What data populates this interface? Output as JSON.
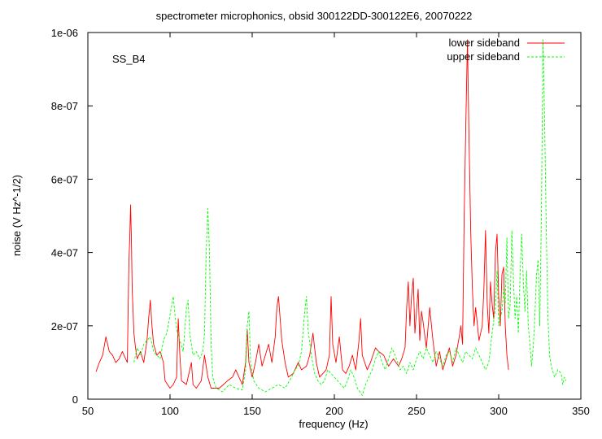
{
  "chart_data": {
    "type": "line",
    "title": "spectrometer microphonics, obsid 300122DD-300122E6, 20070222",
    "xlabel": "frequency (Hz)",
    "ylabel": "noise (V Hz^-1/2)",
    "annotation": "SS_B4",
    "xlim": [
      50,
      350
    ],
    "ylim": [
      0,
      1e-06
    ],
    "xticks": [
      50,
      100,
      150,
      200,
      250,
      300,
      350
    ],
    "xtick_labels": [
      "50",
      "100",
      "150",
      "200",
      "250",
      "300",
      "350"
    ],
    "yticks": [
      0,
      2e-07,
      4e-07,
      6e-07,
      8e-07,
      1e-06
    ],
    "ytick_labels": [
      "0",
      "2e-07",
      "4e-07",
      "6e-07",
      "8e-07",
      "1e-06"
    ],
    "legend_position": "top-right",
    "series": [
      {
        "name": "lower sideband",
        "color": "#ff0000",
        "style": "solid",
        "points": [
          [
            55,
            7.5e-08
          ],
          [
            57,
            1e-07
          ],
          [
            59,
            1.2e-07
          ],
          [
            61,
            1.7e-07
          ],
          [
            63,
            1.3e-07
          ],
          [
            65,
            1.2e-07
          ],
          [
            67,
            1e-07
          ],
          [
            69,
            1.1e-07
          ],
          [
            71,
            1.3e-07
          ],
          [
            73,
            1.1e-07
          ],
          [
            74,
            1e-07
          ],
          [
            75,
            3.8e-07
          ],
          [
            75.5,
            4.4e-07
          ],
          [
            76,
            5.3e-07
          ],
          [
            76.5,
            4.4e-07
          ],
          [
            77,
            3e-07
          ],
          [
            78,
            1.8e-07
          ],
          [
            79,
            1.4e-07
          ],
          [
            80,
            1.1e-07
          ],
          [
            82,
            1.3e-07
          ],
          [
            84,
            1e-07
          ],
          [
            86,
            1.6e-07
          ],
          [
            87,
            2.2e-07
          ],
          [
            88,
            2.7e-07
          ],
          [
            89,
            2e-07
          ],
          [
            90,
            1.5e-07
          ],
          [
            92,
            1.2e-07
          ],
          [
            94,
            1.3e-07
          ],
          [
            96,
            1e-07
          ],
          [
            97,
            5e-08
          ],
          [
            100,
            3e-08
          ],
          [
            102,
            4e-08
          ],
          [
            104,
            6e-08
          ],
          [
            105,
            2.2e-07
          ],
          [
            106,
            1.2e-07
          ],
          [
            107,
            5e-08
          ],
          [
            110,
            4e-08
          ],
          [
            112,
            8e-08
          ],
          [
            113,
            1e-07
          ],
          [
            114,
            4e-08
          ],
          [
            116,
            3e-08
          ],
          [
            119,
            5e-08
          ],
          [
            121,
            1.2e-07
          ],
          [
            123,
            6e-08
          ],
          [
            125,
            3e-08
          ],
          [
            130,
            3e-08
          ],
          [
            135,
            5e-08
          ],
          [
            138,
            6e-08
          ],
          [
            140,
            8e-08
          ],
          [
            142,
            6e-08
          ],
          [
            144,
            4e-08
          ],
          [
            146,
            1e-07
          ],
          [
            147,
            1.9e-07
          ],
          [
            148,
            1e-07
          ],
          [
            150,
            6e-08
          ],
          [
            152,
            1e-07
          ],
          [
            154,
            1.5e-07
          ],
          [
            156,
            9e-08
          ],
          [
            158,
            1.2e-07
          ],
          [
            160,
            1.5e-07
          ],
          [
            162,
            1e-07
          ],
          [
            164,
            1.7e-07
          ],
          [
            165,
            2.5e-07
          ],
          [
            166,
            2.8e-07
          ],
          [
            168,
            1.6e-07
          ],
          [
            170,
            1e-07
          ],
          [
            172,
            6e-08
          ],
          [
            175,
            7e-08
          ],
          [
            178,
            1e-07
          ],
          [
            180,
            8e-08
          ],
          [
            183,
            9e-08
          ],
          [
            185,
            1.2e-07
          ],
          [
            187,
            1.8e-07
          ],
          [
            189,
            1e-07
          ],
          [
            191,
            6e-08
          ],
          [
            193,
            7e-08
          ],
          [
            195,
            8e-08
          ],
          [
            197,
            1.2e-07
          ],
          [
            198,
            2.8e-07
          ],
          [
            199,
            1.5e-07
          ],
          [
            201,
            1e-07
          ],
          [
            203,
            1.7e-07
          ],
          [
            205,
            8e-08
          ],
          [
            207,
            7e-08
          ],
          [
            209,
            9e-08
          ],
          [
            211,
            1.2e-07
          ],
          [
            213,
            8e-08
          ],
          [
            215,
            1.6e-07
          ],
          [
            216,
            2.2e-07
          ],
          [
            217,
            1.2e-07
          ],
          [
            220,
            8e-08
          ],
          [
            222,
            1e-07
          ],
          [
            225,
            1.4e-07
          ],
          [
            227,
            1.3e-07
          ],
          [
            230,
            1.2e-07
          ],
          [
            233,
            9e-08
          ],
          [
            236,
            1.1e-07
          ],
          [
            239,
            9e-08
          ],
          [
            241,
            1.1e-07
          ],
          [
            243,
            1.4e-07
          ],
          [
            244,
            2.5e-07
          ],
          [
            245,
            3.2e-07
          ],
          [
            246,
            2e-07
          ],
          [
            247,
            2.8e-07
          ],
          [
            248,
            3.3e-07
          ],
          [
            249,
            1.8e-07
          ],
          [
            250,
            2.4e-07
          ],
          [
            251,
            3e-07
          ],
          [
            252,
            1.6e-07
          ],
          [
            253,
            2.4e-07
          ],
          [
            254,
            2.1e-07
          ],
          [
            256,
            1.4e-07
          ],
          [
            258,
            2.5e-07
          ],
          [
            260,
            1.6e-07
          ],
          [
            262,
            9e-08
          ],
          [
            264,
            1.3e-07
          ],
          [
            266,
            8e-08
          ],
          [
            268,
            1.1e-07
          ],
          [
            270,
            1.4e-07
          ],
          [
            272,
            9e-08
          ],
          [
            274,
            1.2e-07
          ],
          [
            276,
            1.7e-07
          ],
          [
            277,
            2e-07
          ],
          [
            278,
            1.5e-07
          ],
          [
            279,
            5e-07
          ],
          [
            280,
            7.5e-07
          ],
          [
            281,
            9.8e-07
          ],
          [
            282,
            7e-07
          ],
          [
            283,
            4.5e-07
          ],
          [
            284,
            3e-07
          ],
          [
            285,
            2e-07
          ],
          [
            286,
            2.5e-07
          ],
          [
            288,
            1.6e-07
          ],
          [
            290,
            2e-07
          ],
          [
            291,
            3e-07
          ],
          [
            292,
            4.6e-07
          ],
          [
            293,
            2.6e-07
          ],
          [
            294,
            1.8e-07
          ],
          [
            295,
            3.2e-07
          ],
          [
            296,
            2.6e-07
          ],
          [
            297,
            2.2e-07
          ],
          [
            298,
            4e-07
          ],
          [
            299,
            4.5e-07
          ],
          [
            300,
            2.8e-07
          ],
          [
            301,
            2e-07
          ],
          [
            302,
            3.4e-07
          ],
          [
            303,
            3.6e-07
          ],
          [
            304,
            2e-07
          ],
          [
            305,
            1.2e-07
          ],
          [
            306,
            8e-08
          ]
        ]
      },
      {
        "name": "upper sideband",
        "color": "#00ff00",
        "style": "dashed",
        "points": [
          [
            78,
            1e-07
          ],
          [
            80,
            1.4e-07
          ],
          [
            82,
            1.2e-07
          ],
          [
            84,
            1.5e-07
          ],
          [
            86,
            1.6e-07
          ],
          [
            88,
            1.7e-07
          ],
          [
            90,
            1.3e-07
          ],
          [
            92,
            1.2e-07
          ],
          [
            94,
            1.1e-07
          ],
          [
            96,
            1.6e-07
          ],
          [
            98,
            1.8e-07
          ],
          [
            100,
            2.3e-07
          ],
          [
            102,
            2.8e-07
          ],
          [
            103,
            2.3e-07
          ],
          [
            104,
            1.9e-07
          ],
          [
            106,
            1.6e-07
          ],
          [
            108,
            1.3e-07
          ],
          [
            110,
            2.5e-07
          ],
          [
            111,
            2.7e-07
          ],
          [
            112,
            1.8e-07
          ],
          [
            114,
            1.2e-07
          ],
          [
            116,
            1.3e-07
          ],
          [
            118,
            1.1e-07
          ],
          [
            120,
            1.3e-07
          ],
          [
            121,
            1.8e-07
          ],
          [
            122,
            4e-07
          ],
          [
            123,
            5.2e-07
          ],
          [
            124,
            4e-07
          ],
          [
            125,
            1.5e-07
          ],
          [
            126,
            6e-08
          ],
          [
            128,
            3e-08
          ],
          [
            132,
            2e-08
          ],
          [
            136,
            4e-08
          ],
          [
            140,
            3e-08
          ],
          [
            144,
            2.5e-08
          ],
          [
            146,
            8e-08
          ],
          [
            147,
            2e-07
          ],
          [
            148,
            2.4e-07
          ],
          [
            149,
            1e-07
          ],
          [
            151,
            5e-08
          ],
          [
            154,
            3e-08
          ],
          [
            158,
            2e-08
          ],
          [
            162,
            3e-08
          ],
          [
            166,
            4e-08
          ],
          [
            170,
            3e-08
          ],
          [
            174,
            6e-08
          ],
          [
            176,
            8e-08
          ],
          [
            178,
            9e-08
          ],
          [
            180,
            1.3e-07
          ],
          [
            182,
            2.4e-07
          ],
          [
            183,
            2.8e-07
          ],
          [
            184,
            1.9e-07
          ],
          [
            186,
            1.2e-07
          ],
          [
            188,
            7e-08
          ],
          [
            190,
            5e-08
          ],
          [
            192,
            4e-08
          ],
          [
            194,
            5e-08
          ],
          [
            196,
            8e-08
          ],
          [
            198,
            7e-08
          ],
          [
            200,
            6e-08
          ],
          [
            202,
            5e-08
          ],
          [
            204,
            4e-08
          ],
          [
            206,
            3e-08
          ],
          [
            208,
            5e-08
          ],
          [
            210,
            8e-08
          ],
          [
            212,
            6e-08
          ],
          [
            214,
            3e-08
          ],
          [
            217,
            1e-08
          ],
          [
            219,
            4e-08
          ],
          [
            221,
            6e-08
          ],
          [
            223,
            8e-08
          ],
          [
            225,
            1.1e-07
          ],
          [
            227,
            1.3e-07
          ],
          [
            229,
            1e-07
          ],
          [
            231,
            8e-08
          ],
          [
            233,
            1.1e-07
          ],
          [
            235,
            1.4e-07
          ],
          [
            237,
            1.2e-07
          ],
          [
            240,
            8e-08
          ],
          [
            242,
            9e-08
          ],
          [
            244,
            7e-08
          ],
          [
            246,
            1e-07
          ],
          [
            248,
            8e-08
          ],
          [
            250,
            1.1e-07
          ],
          [
            252,
            1.3e-07
          ],
          [
            254,
            1.1e-07
          ],
          [
            256,
            1.4e-07
          ],
          [
            258,
            1.2e-07
          ],
          [
            260,
            1e-07
          ],
          [
            262,
            1.3e-07
          ],
          [
            264,
            1.1e-07
          ],
          [
            266,
            9e-08
          ],
          [
            268,
            1.2e-07
          ],
          [
            270,
            1.3e-07
          ],
          [
            272,
            1e-07
          ],
          [
            274,
            1.4e-07
          ],
          [
            276,
            1.2e-07
          ],
          [
            278,
            1e-07
          ],
          [
            280,
            1.3e-07
          ],
          [
            282,
            1.2e-07
          ],
          [
            284,
            1.1e-07
          ],
          [
            286,
            1.4e-07
          ],
          [
            288,
            1.2e-07
          ],
          [
            290,
            1e-07
          ],
          [
            292,
            8e-08
          ],
          [
            294,
            1e-07
          ],
          [
            296,
            1.8e-07
          ],
          [
            298,
            2.5e-07
          ],
          [
            299,
            3.5e-07
          ],
          [
            300,
            2e-07
          ],
          [
            302,
            2.4e-07
          ],
          [
            303,
            3e-07
          ],
          [
            304,
            2.6e-07
          ],
          [
            305,
            4.4e-07
          ],
          [
            306,
            2.2e-07
          ],
          [
            307,
            2.6e-07
          ],
          [
            308,
            4.6e-07
          ],
          [
            309,
            3.2e-07
          ],
          [
            310,
            2.2e-07
          ],
          [
            311,
            2.8e-07
          ],
          [
            312,
            1.8e-07
          ],
          [
            313,
            3.4e-07
          ],
          [
            314,
            4.5e-07
          ],
          [
            315,
            3.2e-07
          ],
          [
            316,
            2.4e-07
          ],
          [
            317,
            3.5e-07
          ],
          [
            318,
            2e-07
          ],
          [
            319,
            1.5e-07
          ],
          [
            320,
            9e-08
          ],
          [
            321,
            1.4e-07
          ],
          [
            322,
            2.2e-07
          ],
          [
            323,
            3.4e-07
          ],
          [
            324,
            3.8e-07
          ],
          [
            325,
            2e-07
          ],
          [
            326,
            5e-07
          ],
          [
            327,
            9.8e-07
          ],
          [
            328,
            7.4e-07
          ],
          [
            329,
            4.5e-07
          ],
          [
            330,
            2.2e-07
          ],
          [
            331,
            1.2e-07
          ],
          [
            332,
            9e-08
          ],
          [
            334,
            6e-08
          ],
          [
            336,
            8e-08
          ],
          [
            338,
            7e-08
          ],
          [
            339,
            4e-08
          ],
          [
            340,
            6e-08
          ],
          [
            341,
            5e-08
          ]
        ]
      }
    ]
  }
}
